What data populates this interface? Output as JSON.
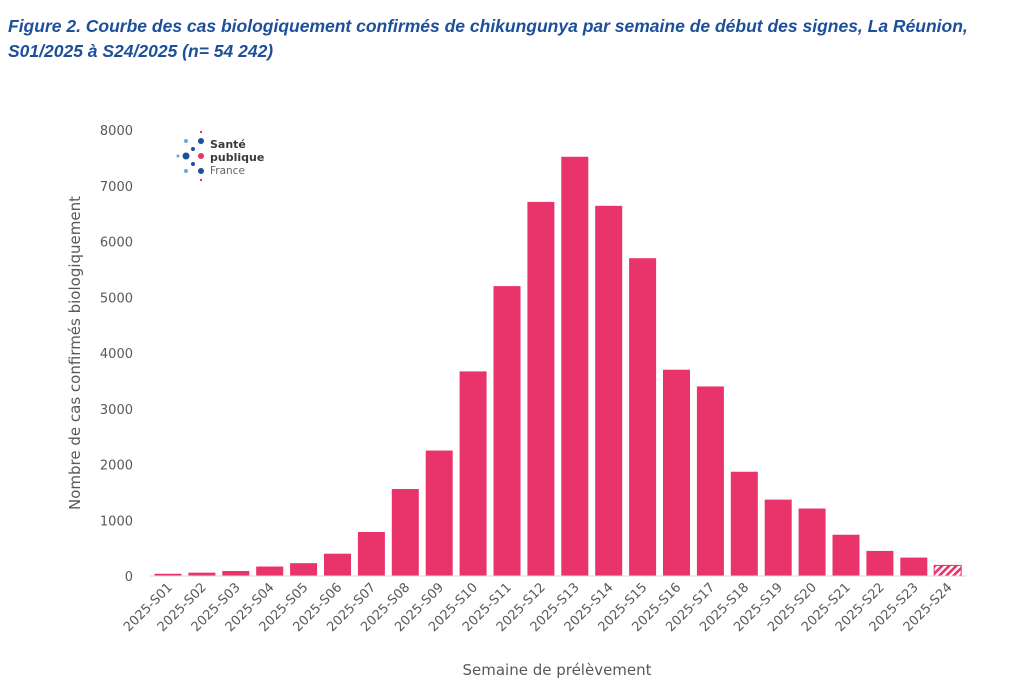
{
  "title": "Figure 2. Courbe des cas biologiquement confirmés de chikungunya par semaine de début des signes, La Réunion, S01/2025 à S24/2025 (n= 54 242)",
  "logo": {
    "lines": [
      "Santé",
      "publique",
      "France"
    ]
  },
  "chart_data": {
    "type": "bar",
    "title": "Figure 2. Courbe des cas biologiquement confirmés de chikungunya par semaine de début des signes, La Réunion, S01/2025 à S24/2025 (n= 54 242)",
    "xlabel": "Semaine de prélèvement",
    "ylabel": "Nombre de cas confirmés biologiquement",
    "ylim": [
      0,
      8000
    ],
    "yticks": [
      0,
      1000,
      2000,
      3000,
      4000,
      5000,
      6000,
      7000,
      8000
    ],
    "grid": false,
    "categories": [
      "2025-S01",
      "2025-S02",
      "2025-S03",
      "2025-S04",
      "2025-S05",
      "2025-S06",
      "2025-S07",
      "2025-S08",
      "2025-S09",
      "2025-S10",
      "2025-S11",
      "2025-S12",
      "2025-S13",
      "2025-S14",
      "2025-S15",
      "2025-S16",
      "2025-S17",
      "2025-S18",
      "2025-S19",
      "2025-S20",
      "2025-S21",
      "2025-S22",
      "2025-S23",
      "2025-S24"
    ],
    "values": [
      40,
      60,
      90,
      170,
      230,
      400,
      790,
      1560,
      2250,
      3670,
      5200,
      6710,
      7520,
      6640,
      5700,
      3700,
      3400,
      1870,
      1370,
      1210,
      740,
      450,
      330,
      190
    ],
    "hatched_categories": [
      "2025-S24"
    ],
    "bar_color": "#e8336b"
  }
}
